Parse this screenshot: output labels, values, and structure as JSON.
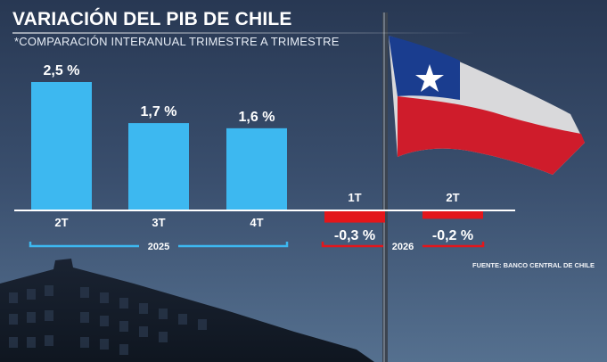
{
  "header": {
    "title": "VARIACIÓN DEL PIB DE CHILE",
    "subtitle": "*COMPARACIÓN INTERANUAL TRIMESTRE A TRIMESTRE"
  },
  "footer": {
    "source": "FUENTE: BANCO CENTRAL DE CHILE"
  },
  "colors": {
    "positive": "#3db8f0",
    "negative": "#e3161b",
    "baseline": "#ffffff",
    "bracket_2025": "#3db8f0",
    "bracket_2026": "#e3161b"
  },
  "chart_data": {
    "type": "bar",
    "title": "VARIACIÓN DEL PIB DE CHILE",
    "subtitle": "*COMPARACIÓN INTERANUAL TRIMESTRE A TRIMESTRE",
    "categories": [
      "2T",
      "3T",
      "4T",
      "1T",
      "2T"
    ],
    "values": [
      2.5,
      1.7,
      1.6,
      -0.3,
      -0.2
    ],
    "value_labels": [
      "2,5 %",
      "1,7 %",
      "1,6 %",
      "-0,3 %",
      "-0,2 %"
    ],
    "groups": [
      {
        "label": "2025",
        "categories": [
          "2T",
          "3T",
          "4T"
        ]
      },
      {
        "label": "2026",
        "categories": [
          "1T",
          "2T"
        ]
      }
    ],
    "ylim": [
      -0.3,
      2.5
    ],
    "grid": false,
    "legend": "none"
  }
}
